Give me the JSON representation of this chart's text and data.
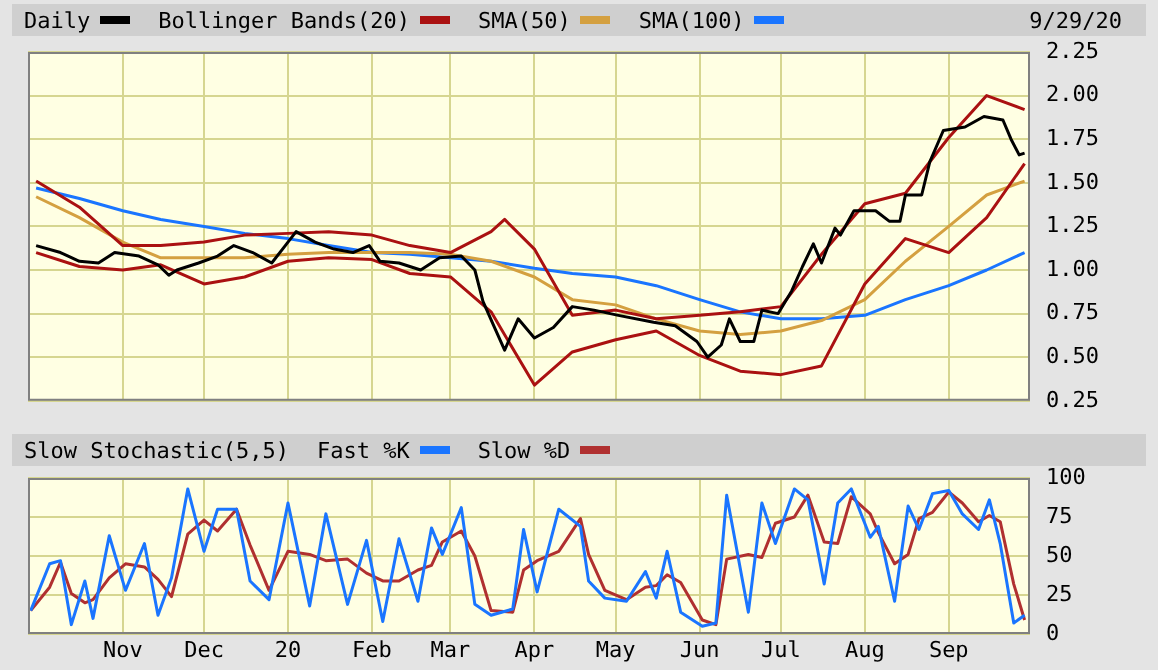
{
  "chart_data": [
    {
      "type": "line",
      "legend": "top left",
      "grid": true,
      "tick_labels": "y",
      "annotations": [
        "9/29/20"
      ],
      "x": [
        "2019-09-30",
        "2019-10-16",
        "2019-11-01",
        "2019-11-15",
        "2019-12-01",
        "2019-12-16",
        "2020-01-01",
        "2020-01-16",
        "2020-02-01",
        "2020-02-15",
        "2020-03-01",
        "2020-03-16",
        "2020-04-01",
        "2020-04-15",
        "2020-05-01",
        "2020-05-16",
        "2020-06-01",
        "2020-06-16",
        "2020-07-01",
        "2020-07-16",
        "2020-08-01",
        "2020-08-16",
        "2020-09-01",
        "2020-09-15",
        "2020-09-29"
      ],
      "xlim": [
        "2019-09-27",
        "2020-10-01"
      ],
      "xticks": [
        {
          "value": "2019-11-01",
          "label": null
        },
        {
          "value": "2019-12-01",
          "label": null
        },
        {
          "value": "2020-01-01",
          "label": null
        },
        {
          "value": "2020-02-01",
          "label": null
        },
        {
          "value": "2020-03-01",
          "label": null
        },
        {
          "value": "2020-04-01",
          "label": null
        },
        {
          "value": "2020-05-01",
          "label": null
        },
        {
          "value": "2020-06-01",
          "label": null
        },
        {
          "value": "2020-07-01",
          "label": null
        },
        {
          "value": "2020-08-01",
          "label": null
        },
        {
          "value": "2020-09-01",
          "label": null
        }
      ],
      "ylim": [
        0.25,
        2.25
      ],
      "yticks": [
        {
          "value": 0.25,
          "label": "0.25"
        },
        {
          "value": 0.5,
          "label": "0.50"
        },
        {
          "value": 0.75,
          "label": "0.75"
        },
        {
          "value": 1,
          "label": "1.00"
        },
        {
          "value": 1.25,
          "label": "1.25"
        },
        {
          "value": 1.5,
          "label": "1.50"
        },
        {
          "value": 1.75,
          "label": "1.75"
        },
        {
          "value": 2,
          "label": "2.00"
        },
        {
          "value": 2.25,
          "label": "2.25"
        }
      ],
      "series": [
        {
          "name": "Daily",
          "color": "#000000",
          "x": [
            "2019-09-30",
            "2019-10-09",
            "2019-10-16",
            "2019-10-23",
            "2019-10-29",
            "2019-11-07",
            "2019-11-14",
            "2019-11-18",
            "2019-11-21",
            "2019-11-29",
            "2019-12-06",
            "2019-12-12",
            "2019-12-19",
            "2019-12-26",
            "2019-12-31",
            "2020-01-04",
            "2020-01-11",
            "2020-01-18",
            "2020-01-25",
            "2020-01-31",
            "2020-02-04",
            "2020-02-11",
            "2020-02-19",
            "2020-02-26",
            "2020-03-05",
            "2020-03-10",
            "2020-03-13",
            "2020-03-17",
            "2020-03-21",
            "2020-03-26",
            "2020-04-01",
            "2020-04-08",
            "2020-04-15",
            "2020-04-23",
            "2020-05-02",
            "2020-05-15",
            "2020-05-23",
            "2020-05-31",
            "2020-06-04",
            "2020-06-09",
            "2020-06-12",
            "2020-06-16",
            "2020-06-21",
            "2020-06-24",
            "2020-06-30",
            "2020-07-05",
            "2020-07-09",
            "2020-07-13",
            "2020-07-16",
            "2020-07-21",
            "2020-07-23",
            "2020-07-28",
            "2020-08-05",
            "2020-08-10",
            "2020-08-14",
            "2020-08-16",
            "2020-08-22",
            "2020-08-25",
            "2020-08-30",
            "2020-09-07",
            "2020-09-14",
            "2020-09-21",
            "2020-09-24",
            "2020-09-27",
            "2020-09-29"
          ],
          "values": [
            1.14,
            1.1,
            1.05,
            1.04,
            1.1,
            1.08,
            1.03,
            0.97,
            1.0,
            1.04,
            1.08,
            1.14,
            1.1,
            1.04,
            1.14,
            1.22,
            1.16,
            1.12,
            1.1,
            1.14,
            1.05,
            1.04,
            1.0,
            1.07,
            1.08,
            1.0,
            0.82,
            0.68,
            0.54,
            0.72,
            0.61,
            0.67,
            0.79,
            0.77,
            0.74,
            0.7,
            0.68,
            0.59,
            0.5,
            0.57,
            0.72,
            0.59,
            0.59,
            0.77,
            0.75,
            0.88,
            1.02,
            1.15,
            1.04,
            1.24,
            1.2,
            1.34,
            1.34,
            1.28,
            1.28,
            1.43,
            1.43,
            1.62,
            1.8,
            1.82,
            1.88,
            1.86,
            1.75,
            1.66,
            1.67
          ]
        },
        {
          "name": "Bollinger Bands(20)",
          "color": "#aa1111",
          "x": [
            "2019-09-30",
            "2019-10-16",
            "2019-11-01",
            "2019-11-15",
            "2019-12-01",
            "2019-12-16",
            "2020-01-01",
            "2020-01-16",
            "2020-02-01",
            "2020-02-15",
            "2020-03-01",
            "2020-03-16",
            "2020-03-21",
            "2020-04-01",
            "2020-04-15",
            "2020-05-01",
            "2020-05-16",
            "2020-06-01",
            "2020-06-16",
            "2020-07-01",
            "2020-07-16",
            "2020-08-01",
            "2020-08-16",
            "2020-09-01",
            "2020-09-15",
            "2020-09-29"
          ],
          "values": [
            1.51,
            1.36,
            1.14,
            1.14,
            1.16,
            1.2,
            1.21,
            1.22,
            1.2,
            1.14,
            1.1,
            1.22,
            1.29,
            1.12,
            0.74,
            0.77,
            0.72,
            0.74,
            0.76,
            0.79,
            1.09,
            1.38,
            1.44,
            1.76,
            2.0,
            1.92
          ]
        },
        {
          "color": "#aa1111",
          "values": [
            1.1,
            1.02,
            1.0,
            1.03,
            0.92,
            0.96,
            1.05,
            1.07,
            1.06,
            0.98,
            0.96,
            0.76,
            0.34,
            0.53,
            0.6,
            0.65,
            0.51,
            0.42,
            0.4,
            0.45,
            0.92,
            1.18,
            1.1,
            1.3,
            1.61
          ]
        },
        {
          "name": "SMA(50)",
          "color": "#d4a040",
          "values": [
            1.42,
            1.3,
            1.16,
            1.07,
            1.07,
            1.07,
            1.09,
            1.1,
            1.1,
            1.1,
            1.09,
            1.05,
            0.96,
            0.83,
            0.8,
            0.72,
            0.65,
            0.63,
            0.65,
            0.71,
            0.83,
            1.05,
            1.25,
            1.43,
            1.51
          ]
        },
        {
          "name": "SMA(100)",
          "color": "#1a75ff",
          "values": [
            1.47,
            1.41,
            1.34,
            1.29,
            1.25,
            1.21,
            1.18,
            1.14,
            1.1,
            1.09,
            1.07,
            1.05,
            1.01,
            0.98,
            0.96,
            0.91,
            0.83,
            0.76,
            0.72,
            0.72,
            0.74,
            0.83,
            0.91,
            1.0,
            1.1
          ]
        }
      ]
    },
    {
      "type": "line",
      "title": "Slow Stochastic(5,5)",
      "legend": "top left",
      "grid": true,
      "x": [
        "2019-09-28",
        "2019-10-05",
        "2019-10-09",
        "2019-10-13",
        "2019-10-18",
        "2019-10-21",
        "2019-10-27",
        "2019-11-02",
        "2019-11-09",
        "2019-11-14",
        "2019-11-19",
        "2019-11-25",
        "2019-12-01",
        "2019-12-06",
        "2019-12-13",
        "2019-12-18",
        "2019-12-25",
        "2020-01-01",
        "2020-01-09",
        "2020-01-15",
        "2020-01-23",
        "2020-01-30",
        "2020-02-05",
        "2020-02-11",
        "2020-02-18",
        "2020-02-23",
        "2020-02-27",
        "2020-03-05",
        "2020-03-10",
        "2020-03-16",
        "2020-03-24",
        "2020-03-28",
        "2020-04-02",
        "2020-04-10",
        "2020-04-18",
        "2020-04-21",
        "2020-04-27",
        "2020-05-05",
        "2020-05-12",
        "2020-05-16",
        "2020-05-20",
        "2020-05-25",
        "2020-06-02",
        "2020-06-07",
        "2020-06-11",
        "2020-06-19",
        "2020-06-24",
        "2020-06-29",
        "2020-07-06",
        "2020-07-11",
        "2020-07-17",
        "2020-07-22",
        "2020-07-27",
        "2020-08-03",
        "2020-08-06",
        "2020-08-12",
        "2020-08-17",
        "2020-08-21",
        "2020-08-26",
        "2020-09-01",
        "2020-09-06",
        "2020-09-12",
        "2020-09-16",
        "2020-09-20",
        "2020-09-25",
        "2020-09-29"
      ],
      "xlim": [
        "2019-09-27",
        "2020-10-01"
      ],
      "xticks": [
        {
          "value": "2019-11-01",
          "label": "Nov"
        },
        {
          "value": "2019-12-01",
          "label": "Dec"
        },
        {
          "value": "2020-01-01",
          "label": "20"
        },
        {
          "value": "2020-02-01",
          "label": "Feb"
        },
        {
          "value": "2020-03-01",
          "label": "Mar"
        },
        {
          "value": "2020-04-01",
          "label": "Apr"
        },
        {
          "value": "2020-05-01",
          "label": "May"
        },
        {
          "value": "2020-06-01",
          "label": "Jun"
        },
        {
          "value": "2020-07-01",
          "label": "Jul"
        },
        {
          "value": "2020-08-01",
          "label": "Aug"
        },
        {
          "value": "2020-09-01",
          "label": "Sep"
        }
      ],
      "ylim": [
        0,
        100
      ],
      "yticks": [
        0,
        25,
        50,
        75,
        100
      ],
      "series": [
        {
          "name": "Fast %K",
          "color": "#1a75ff",
          "values": [
            15,
            45,
            47,
            6,
            34,
            10,
            63,
            28,
            58,
            12,
            36,
            93,
            53,
            80,
            80,
            34,
            22,
            84,
            18,
            77,
            19,
            60,
            8,
            61,
            21,
            68,
            51,
            81,
            19,
            12,
            16,
            67,
            27,
            80,
            69,
            34,
            23,
            21,
            40,
            23,
            53,
            14,
            5,
            7,
            89,
            14,
            84,
            58,
            93,
            86,
            32,
            84,
            93,
            62,
            69,
            21,
            82,
            67,
            90,
            92,
            77,
            67,
            86,
            58,
            7,
            12
          ]
        },
        {
          "name": "Slow %D",
          "color": "#b03030",
          "values": [
            15,
            30,
            46,
            26,
            20,
            22,
            36,
            45,
            43,
            35,
            24,
            64,
            73,
            66,
            80,
            57,
            28,
            53,
            51,
            47,
            48,
            39,
            34,
            34,
            41,
            44,
            59,
            66,
            50,
            15,
            14,
            41,
            47,
            53,
            74,
            51,
            28,
            22,
            30,
            31,
            38,
            33,
            9,
            6,
            48,
            51,
            49,
            71,
            75,
            89,
            59,
            58,
            88,
            77,
            65,
            45,
            51,
            74,
            78,
            91,
            84,
            72,
            76,
            72,
            32,
            9
          ]
        }
      ]
    }
  ]
}
